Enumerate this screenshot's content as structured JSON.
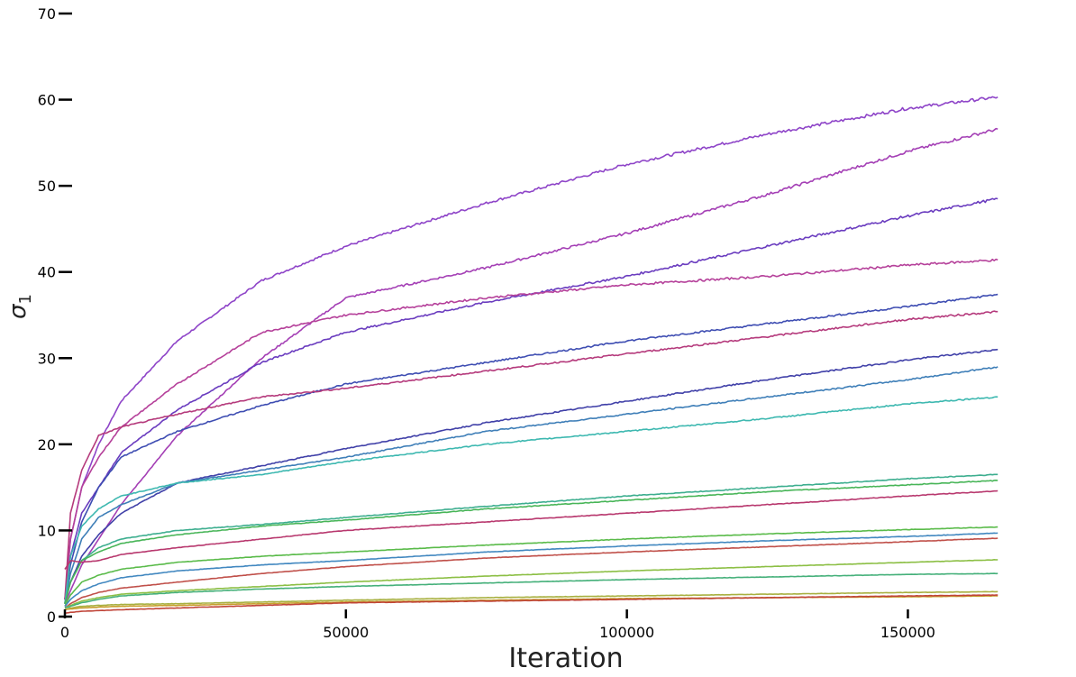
{
  "chart_data": {
    "type": "line",
    "xlabel": "Iteration",
    "ylabel": "σ",
    "ylabel_subscript": "1",
    "xlim": [
      0,
      165000
    ],
    "ylim": [
      0,
      70
    ],
    "xticks": [
      0,
      50000,
      100000,
      150000
    ],
    "xtick_labels": [
      "0",
      "50000",
      "100000",
      "150000"
    ],
    "yticks": [
      0,
      10,
      20,
      30,
      40,
      50,
      60,
      70
    ],
    "ytick_labels": [
      "0",
      "10",
      "20",
      "30",
      "40",
      "50",
      "60",
      "70"
    ],
    "grid": false,
    "legend": "none",
    "x": [
      0,
      1000,
      3000,
      6000,
      10000,
      20000,
      35000,
      50000,
      75000,
      100000,
      125000,
      150000,
      166000
    ],
    "series": [
      {
        "color": "#8e44c8",
        "values": [
          2,
          9,
          15,
          20,
          25,
          32,
          39,
          43,
          48,
          52.5,
          56,
          59,
          60.3
        ]
      },
      {
        "color": "#a43fb5",
        "values": [
          1.5,
          3,
          6,
          9,
          13,
          21,
          30,
          37,
          40.5,
          44.5,
          49,
          54,
          56.6
        ]
      },
      {
        "color": "#6a3cbf",
        "values": [
          2,
          7,
          12,
          15,
          19,
          24,
          29.5,
          33,
          36.5,
          39.5,
          43,
          46.5,
          48.5
        ]
      },
      {
        "color": "#b5409a",
        "values": [
          1.5,
          9,
          15,
          18.5,
          22,
          27,
          33,
          35,
          37,
          38.5,
          39.5,
          40.8,
          41.4
        ]
      },
      {
        "color": "#3e4db2",
        "values": [
          2,
          6,
          11,
          15,
          18.5,
          21.5,
          24.5,
          27,
          29.5,
          32,
          34,
          36,
          37.4
        ]
      },
      {
        "color": "#b53a7c",
        "values": [
          2,
          12,
          17,
          21,
          22,
          23.5,
          25.5,
          26.5,
          28.5,
          30.5,
          32.5,
          34.5,
          35.4
        ]
      },
      {
        "color": "#4040a8",
        "values": [
          1.5,
          4,
          7,
          9.5,
          12,
          15.5,
          17.5,
          19.5,
          22.5,
          25,
          27.5,
          29.8,
          31
        ]
      },
      {
        "color": "#3f7fb8",
        "values": [
          1.5,
          5,
          9,
          11.5,
          13,
          15.5,
          17,
          18.5,
          21.5,
          23.5,
          25.5,
          27.5,
          29
        ]
      },
      {
        "color": "#3db8b0",
        "values": [
          1.5,
          7,
          10.5,
          12.5,
          14,
          15.5,
          16.5,
          18,
          20,
          21.5,
          23,
          24.7,
          25.5
        ]
      },
      {
        "color": "#3dae8f",
        "values": [
          1.5,
          4,
          6.5,
          8,
          9,
          10,
          10.7,
          11.5,
          12.8,
          14,
          15,
          16,
          16.5
        ]
      },
      {
        "color": "#48b558",
        "values": [
          1.5,
          4,
          6.5,
          7.5,
          8.5,
          9.5,
          10.5,
          11.2,
          12.5,
          13.5,
          14.5,
          15.3,
          15.8
        ]
      },
      {
        "color": "#b8386e",
        "values": [
          5.5,
          6.5,
          6.3,
          6.5,
          7.2,
          8,
          9,
          10,
          11,
          12,
          13,
          14,
          14.6
        ]
      },
      {
        "color": "#5abb4a",
        "values": [
          1.2,
          2.5,
          4,
          4.8,
          5.5,
          6.3,
          7,
          7.5,
          8.3,
          9,
          9.6,
          10.1,
          10.4
        ]
      },
      {
        "color": "#4288c0",
        "values": [
          1.2,
          2,
          3,
          3.8,
          4.5,
          5.3,
          6,
          6.5,
          7.5,
          8.2,
          8.8,
          9.3,
          9.7
        ]
      },
      {
        "color": "#c0504a",
        "values": [
          1.0,
          1.5,
          2.2,
          2.8,
          3.3,
          4,
          5,
          5.8,
          6.8,
          7.5,
          8.1,
          8.7,
          9.1
        ]
      },
      {
        "color": "#8cbf45",
        "values": [
          1.0,
          1.3,
          1.8,
          2.2,
          2.6,
          3,
          3.5,
          4,
          4.7,
          5.3,
          5.8,
          6.3,
          6.6
        ]
      },
      {
        "color": "#45b07a",
        "values": [
          1.0,
          1.2,
          1.6,
          2,
          2.4,
          2.8,
          3.2,
          3.5,
          3.9,
          4.3,
          4.6,
          4.9,
          5.0
        ]
      },
      {
        "color": "#a8b040",
        "values": [
          0.8,
          1.0,
          1.2,
          1.3,
          1.4,
          1.5,
          1.7,
          1.9,
          2.2,
          2.4,
          2.6,
          2.8,
          2.9
        ]
      },
      {
        "color": "#c8a030",
        "values": [
          0.8,
          0.9,
          1.0,
          1.1,
          1.2,
          1.3,
          1.5,
          1.7,
          1.9,
          2.1,
          2.2,
          2.3,
          2.4
        ]
      },
      {
        "color": "#c04438",
        "values": [
          0.4,
          0.5,
          0.6,
          0.7,
          0.8,
          1.0,
          1.3,
          1.6,
          1.8,
          2.0,
          2.2,
          2.4,
          2.5
        ]
      }
    ]
  }
}
